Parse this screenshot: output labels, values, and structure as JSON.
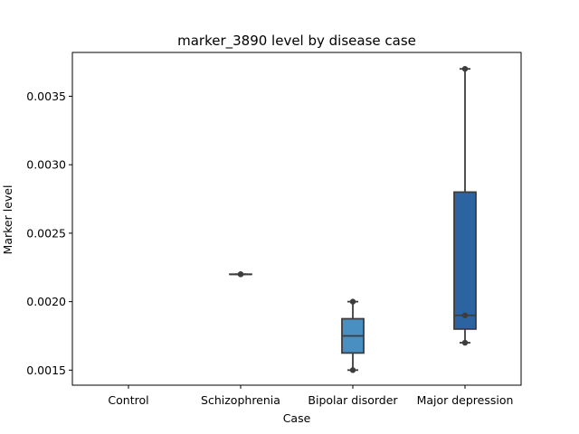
{
  "chart_data": {
    "type": "box",
    "title": "marker_3890 level by disease case",
    "xlabel": "Case",
    "ylabel": "Marker level",
    "ylim": [
      0.00139,
      0.00382
    ],
    "yticks": [
      "0.0015",
      "0.0020",
      "0.0025",
      "0.0030",
      "0.0035"
    ],
    "categories": [
      "Control",
      "Schizophrenia",
      "Bipolar disorder",
      "Major depression"
    ],
    "boxes": [
      {
        "category": "Control",
        "empty": true
      },
      {
        "category": "Schizophrenia",
        "min": 0.0022,
        "q1": 0.0022,
        "median": 0.0022,
        "q3": 0.0022,
        "max": 0.0022,
        "points": [
          0.0022,
          0.0022
        ],
        "color": "#5a9fd4"
      },
      {
        "category": "Bipolar disorder",
        "min": 0.0015,
        "q1": 0.001625,
        "median": 0.00175,
        "q3": 0.001875,
        "max": 0.002,
        "points": [
          0.0015,
          0.002
        ],
        "color": "#4a8fc2"
      },
      {
        "category": "Major depression",
        "min": 0.0017,
        "q1": 0.0018,
        "median": 0.0019,
        "q3": 0.0028,
        "max": 0.0037,
        "points": [
          0.0017,
          0.0019,
          0.0037
        ],
        "color": "#2b64a0"
      }
    ],
    "grid": false,
    "legend": "none"
  }
}
